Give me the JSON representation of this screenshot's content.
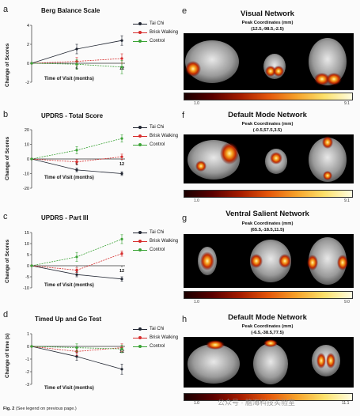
{
  "figure_caption": {
    "label": "Fig. 2",
    "text": "(See legend on previous page.)"
  },
  "watermark": "公众号 · 脑海科技实验室",
  "colors": {
    "tai_chi": "#1f2430",
    "brisk_walking": "#d62b2b",
    "control": "#3aa335"
  },
  "legend": [
    "Tai Chi",
    "Brisk Walking",
    "Control"
  ],
  "chart_data": [
    {
      "panel": "a",
      "type": "line",
      "title": "Berg Balance Scale",
      "ylabel": "Change of Scores",
      "xlabel": "Time of Visit (months)",
      "x": [
        0,
        6,
        12
      ],
      "ylim": [
        -2,
        4
      ],
      "yticks": [
        -2,
        0,
        2,
        4
      ],
      "series": [
        {
          "name": "Tai Chi",
          "values": [
            0,
            1.5,
            2.4
          ],
          "err": [
            0,
            0.5,
            0.5
          ]
        },
        {
          "name": "Brisk Walking",
          "values": [
            0,
            0.2,
            0.5
          ],
          "err": [
            0,
            0.4,
            0.5
          ]
        },
        {
          "name": "Control",
          "values": [
            0,
            -0.1,
            -0.4
          ],
          "err": [
            0,
            0.5,
            0.7
          ]
        }
      ]
    },
    {
      "panel": "b",
      "type": "line",
      "title": "UPDRS - Total Score",
      "ylabel": "Change of Scores",
      "xlabel": "Time of Visit (months)",
      "x": [
        0,
        6,
        12
      ],
      "ylim": [
        -20,
        20
      ],
      "yticks": [
        -20,
        -10,
        0,
        10,
        20
      ],
      "series": [
        {
          "name": "Tai Chi",
          "values": [
            0,
            -7.5,
            -10
          ],
          "err": [
            0,
            1.2,
            1.3
          ]
        },
        {
          "name": "Brisk Walking",
          "values": [
            0,
            -2,
            1.5
          ],
          "err": [
            0,
            1.5,
            1.8
          ]
        },
        {
          "name": "Control",
          "values": [
            0,
            6,
            14
          ],
          "err": [
            0,
            2.5,
            2.5
          ]
        }
      ]
    },
    {
      "panel": "c",
      "type": "line",
      "title": "UPDRS - Part III",
      "ylabel": "Change of Scores",
      "xlabel": "Time of Visit (months)",
      "x": [
        0,
        6,
        12
      ],
      "ylim": [
        -10,
        15
      ],
      "yticks": [
        -10,
        -5,
        0,
        5,
        10,
        15
      ],
      "series": [
        {
          "name": "Tai Chi",
          "values": [
            0,
            -4,
            -6
          ],
          "err": [
            0,
            1,
            1
          ]
        },
        {
          "name": "Brisk Walking",
          "values": [
            0,
            -2,
            5.5
          ],
          "err": [
            0,
            1,
            1.2
          ]
        },
        {
          "name": "Control",
          "values": [
            0,
            4,
            12
          ],
          "err": [
            0,
            2,
            2
          ]
        }
      ]
    },
    {
      "panel": "d",
      "type": "line",
      "title": "Timed Up and Go Test",
      "ylabel": "Change of time (s)",
      "xlabel": "Time of Visit (months)",
      "x": [
        0,
        6,
        12
      ],
      "ylim": [
        -3,
        1
      ],
      "yticks": [
        -3,
        -2,
        -1,
        0,
        1
      ],
      "series": [
        {
          "name": "Tai Chi",
          "values": [
            0,
            -0.8,
            -1.8
          ],
          "err": [
            0,
            0.3,
            0.4
          ]
        },
        {
          "name": "Brisk Walking",
          "values": [
            0,
            -0.4,
            -0.1
          ],
          "err": [
            0,
            0.3,
            0.3
          ]
        },
        {
          "name": "Control",
          "values": [
            0,
            -0.1,
            -0.2
          ],
          "err": [
            0,
            0.3,
            0.3
          ]
        }
      ]
    }
  ],
  "networks": [
    {
      "panel": "e",
      "title": "Visual Network",
      "subtitle": "Peak Coordinates (mm)",
      "coords": "(12.5,-98.5,-2.5)",
      "cbar_min": "1.0",
      "cbar_max": "9.1"
    },
    {
      "panel": "f",
      "title": "Default Mode Network",
      "subtitle": "Peak Coordinates (mm)",
      "coords": "(-0.5,57.5,3.5)",
      "cbar_min": "1.0",
      "cbar_max": "9.1"
    },
    {
      "panel": "g",
      "title": "Ventral Salient Network",
      "subtitle": "Peak Coordinates (mm)",
      "coords": "(65.5,-18.5,11.5)",
      "cbar_min": "1.0",
      "cbar_max": "9.0"
    },
    {
      "panel": "h",
      "title": "Default Mode Network",
      "subtitle": "Peak Coordinates (mm)",
      "coords": "(-6.5,-38.5,77.5)",
      "cbar_min": "1.0",
      "cbar_max": "11.1"
    }
  ]
}
